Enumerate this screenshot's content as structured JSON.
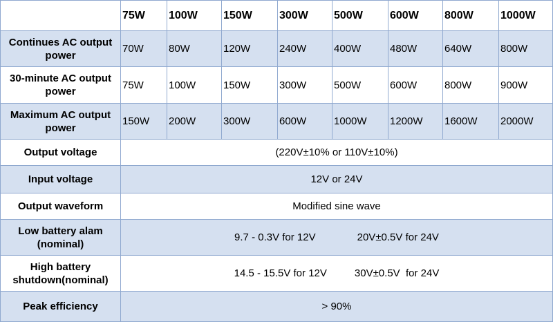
{
  "header": {
    "columns": [
      "75W",
      "100W",
      "150W",
      "300W",
      "500W",
      "600W",
      "800W",
      "1000W"
    ]
  },
  "rows": [
    {
      "label": "Continues AC output power",
      "values": [
        "70W",
        "80W",
        "120W",
        "240W",
        "400W",
        "480W",
        "640W",
        "800W"
      ]
    },
    {
      "label": "30-minute AC output power",
      "values": [
        "75W",
        "100W",
        "150W",
        "300W",
        "500W",
        "600W",
        "800W",
        "900W"
      ]
    },
    {
      "label": "Maximum AC output power",
      "values": [
        "150W",
        "200W",
        "300W",
        "600W",
        "1000W",
        "1200W",
        "1600W",
        "2000W"
      ]
    }
  ],
  "spans": {
    "output_voltage": {
      "label": "Output voltage",
      "value": "(220V±10% or 110V±10%)"
    },
    "input_voltage": {
      "label": "Input voltage",
      "value": "12V or 24V"
    },
    "output_waveform": {
      "label": "Output waveform",
      "value": "Modified sine wave"
    },
    "low_battery": {
      "label": "Low battery alam (nominal)",
      "value_a": "9.7 - 0.3V for 12V",
      "value_b": "20V±0.5V for 24V"
    },
    "high_battery": {
      "label": "High battery shutdown(nominal)",
      "value_a": "14.5 - 15.5V for 12V",
      "value_b": "30V±0.5V  for 24V"
    },
    "peak_efficiency": {
      "label": "Peak efficiency",
      "value": "> 90%"
    }
  },
  "colors": {
    "row_blue": "#d5e0f0",
    "border": "#8fa8cf"
  }
}
